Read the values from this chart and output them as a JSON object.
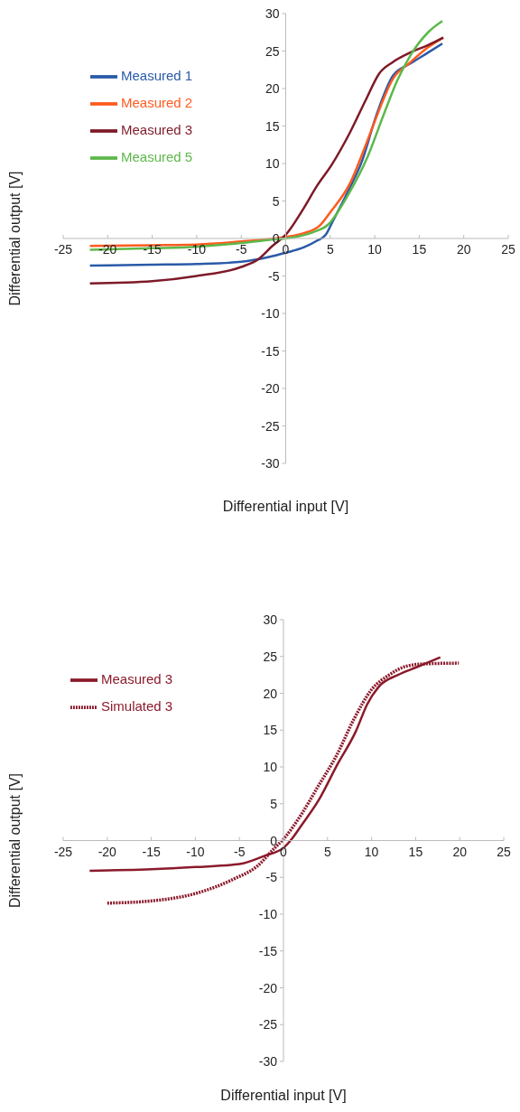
{
  "chart_data": [
    {
      "type": "line",
      "xlabel": "Differential input [V]",
      "ylabel": "Differential output [V]",
      "xlim": [
        -25,
        25
      ],
      "ylim": [
        -30,
        30
      ],
      "xticks": [
        -25,
        -20,
        -15,
        -10,
        -5,
        0,
        5,
        10,
        15,
        20,
        25
      ],
      "yticks": [
        -30,
        -25,
        -20,
        -15,
        -10,
        -5,
        0,
        5,
        10,
        15,
        20,
        25,
        30
      ],
      "legend": "top left",
      "series": [
        {
          "name": "Measured 1",
          "color": "#2a5aa8",
          "x": [
            -22,
            -15,
            -10,
            -5,
            -2,
            0,
            2,
            3.5,
            4.5,
            5.2,
            7,
            8.5,
            10.2,
            12.1,
            14.1,
            16,
            17.6
          ],
          "values": [
            -3.6,
            -3.5,
            -3.4,
            -3.1,
            -2.5,
            -1.9,
            -1.2,
            -0.3,
            0.5,
            2.1,
            6.3,
            10.1,
            16.5,
            21.8,
            23.4,
            24.8,
            26
          ]
        },
        {
          "name": "Measured 2",
          "color": "#ff5a1e",
          "x": [
            -22,
            -15,
            -10,
            -5,
            -2,
            0,
            2,
            3.8,
            5,
            7.2,
            9,
            9.9,
            12.1,
            14,
            16,
            17.7
          ],
          "values": [
            -1,
            -0.9,
            -0.8,
            -0.4,
            -0.1,
            0.2,
            0.7,
            1.7,
            3.5,
            7.3,
            12.5,
            15.3,
            21.4,
            23.5,
            25.5,
            26.8
          ]
        },
        {
          "name": "Measured 3",
          "color": "#7e1a28",
          "x": [
            -22,
            -15,
            -10,
            -5,
            -3,
            -1.5,
            0,
            2,
            3.5,
            5.2,
            7.2,
            9,
            10.5,
            12,
            14,
            16,
            17.7
          ],
          "values": [
            -6,
            -5.7,
            -5,
            -3.8,
            -2.7,
            -1,
            0.5,
            4,
            7,
            9.9,
            14.1,
            18.5,
            22,
            23.5,
            24.8,
            25.8,
            26.8
          ]
        },
        {
          "name": "Measured 5",
          "color": "#5cb84a",
          "x": [
            -22,
            -15,
            -10,
            -5,
            -2,
            0,
            3,
            4.8,
            7,
            9.2,
            11,
            12.5,
            14.1,
            16,
            17.6
          ],
          "values": [
            -1.5,
            -1.3,
            -1.1,
            -0.6,
            -0.2,
            0,
            0.8,
            1.9,
            5.8,
            10.9,
            16.5,
            21,
            24.6,
            27.5,
            29
          ]
        }
      ]
    },
    {
      "type": "line",
      "xlabel": "Differential input [V]",
      "ylabel": "Differential output [V]",
      "xlim": [
        -25,
        25
      ],
      "ylim": [
        -30,
        30
      ],
      "xticks": [
        -25,
        -20,
        -15,
        -10,
        -5,
        0,
        5,
        10,
        15,
        20,
        25
      ],
      "yticks": [
        -30,
        -25,
        -20,
        -15,
        -10,
        -5,
        0,
        5,
        10,
        15,
        20,
        25,
        30
      ],
      "legend": "top left",
      "series": [
        {
          "name": "Measured 3",
          "color": "#8b1a2b",
          "line_style": "solid",
          "x": [
            -22,
            -15,
            -10,
            -5,
            -2,
            0,
            1,
            2,
            4,
            6.1,
            8.2,
            9.5,
            10.9,
            13,
            15,
            17.8
          ],
          "values": [
            -4.1,
            -3.9,
            -3.6,
            -3.2,
            -2,
            -1,
            0.3,
            2,
            5.5,
            10.3,
            14.8,
            18.5,
            21,
            22.5,
            23.5,
            24.9
          ]
        },
        {
          "name": "Simulated 3",
          "color": "#8b1a2b",
          "line_style": "dotted",
          "x": [
            -20,
            -15,
            -10,
            -5.6,
            -3,
            -1,
            0,
            2,
            4,
            6,
            8,
            10,
            12,
            14,
            16,
            19.9
          ],
          "values": [
            -8.5,
            -8.2,
            -7.2,
            -5.2,
            -3.5,
            -1,
            0.2,
            3.5,
            7.5,
            11.5,
            16.5,
            20.5,
            22.5,
            23.7,
            24,
            24.1
          ]
        }
      ]
    }
  ]
}
